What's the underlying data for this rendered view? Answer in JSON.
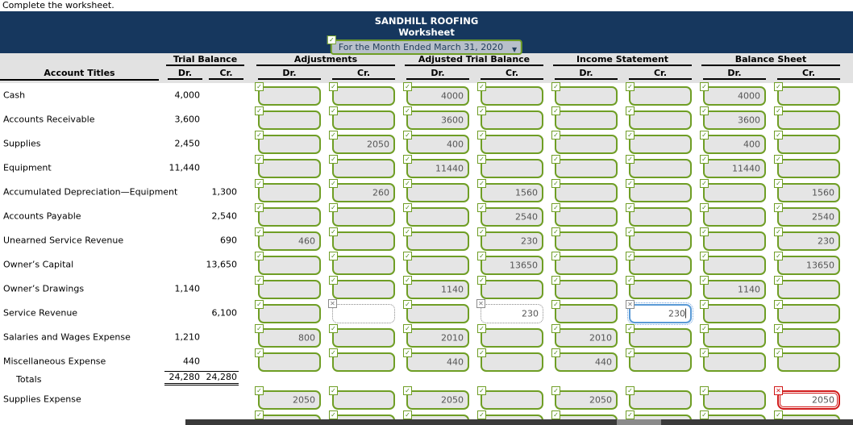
{
  "page": {
    "instruction": "Complete the worksheet."
  },
  "header": {
    "title": "SANDHILL ROOFING",
    "subtitle": "Worksheet",
    "period_dropdown": {
      "value": "For the Month Ended March 31, 2020"
    }
  },
  "columns": {
    "account_titles": "Account Titles",
    "dr": "Dr.",
    "cr": "Cr.",
    "groups": [
      {
        "label": "Trial Balance"
      },
      {
        "label": "Adjustments"
      },
      {
        "label": "Adjusted Trial Balance"
      },
      {
        "label": "Income Statement"
      },
      {
        "label": "Balance Sheet"
      }
    ]
  },
  "icons": {
    "check": "✓",
    "cross": "✕",
    "dropdown": "▼"
  },
  "colors": {
    "navy": "#16375e",
    "green": "#6f9e25",
    "green_dark": "#4e8a1a",
    "input_grey": "#e5e5e5",
    "band_grey": "#e2e2e2",
    "focus_blue": "#5a9ad6",
    "error_red": "#d11a1a",
    "value_text": "#555555"
  },
  "rows": [
    {
      "label": "Cash",
      "tb_dr": "4,000",
      "tb_cr": "",
      "cells": [
        "",
        "",
        "4000",
        "",
        "",
        "",
        "4000",
        ""
      ]
    },
    {
      "label": "Accounts Receivable",
      "tb_dr": "3,600",
      "tb_cr": "",
      "cells": [
        "",
        "",
        "3600",
        "",
        "",
        "",
        "3600",
        ""
      ]
    },
    {
      "label": "Supplies",
      "tb_dr": "2,450",
      "tb_cr": "",
      "cells": [
        "",
        "2050",
        "400",
        "",
        "",
        "",
        "400",
        ""
      ]
    },
    {
      "label": "Equipment",
      "tb_dr": "11,440",
      "tb_cr": "",
      "cells": [
        "",
        "",
        "11440",
        "",
        "",
        "",
        "11440",
        ""
      ]
    },
    {
      "label": "Accumulated Depreciation—Equipment",
      "tb_dr": "",
      "tb_cr": "1,300",
      "cells": [
        "",
        "260",
        "",
        "1560",
        "",
        "",
        "",
        "1560"
      ]
    },
    {
      "label": "Accounts Payable",
      "tb_dr": "",
      "tb_cr": "2,540",
      "cells": [
        "",
        "",
        "",
        "2540",
        "",
        "",
        "",
        "2540"
      ]
    },
    {
      "label": "Unearned Service Revenue",
      "tb_dr": "",
      "tb_cr": "690",
      "cells": [
        "460",
        "",
        "",
        "230",
        "",
        "",
        "",
        "230"
      ]
    },
    {
      "label": "Owner’s Capital",
      "tb_dr": "",
      "tb_cr": "13,650",
      "cells": [
        "",
        "",
        "",
        "13650",
        "",
        "",
        "",
        "13650"
      ]
    },
    {
      "label": "Owner’s Drawings",
      "tb_dr": "1,140",
      "tb_cr": "",
      "cells": [
        "",
        "",
        "1140",
        "",
        "",
        "",
        "1140",
        ""
      ]
    },
    {
      "label": "Service Revenue",
      "tb_dr": "",
      "tb_cr": "6,100",
      "cells": [
        "",
        "",
        "",
        "230",
        "",
        "230",
        "",
        ""
      ],
      "states": {
        "1": "invalid",
        "3": "invalid",
        "5": "active"
      }
    },
    {
      "label": "Salaries and Wages Expense",
      "tb_dr": "1,210",
      "tb_cr": "",
      "cells": [
        "800",
        "",
        "2010",
        "",
        "2010",
        "",
        "",
        ""
      ]
    },
    {
      "label": "Miscellaneous Expense",
      "tb_dr": "440",
      "tb_cr": "",
      "cells": [
        "",
        "",
        "440",
        "",
        "440",
        "",
        "",
        ""
      ]
    },
    {
      "label": "Totals",
      "kind": "totals",
      "tb_dr": "24,280",
      "tb_cr": "24,280"
    },
    {
      "label": "Supplies Expense",
      "tb_dr": "",
      "tb_cr": "",
      "cells": [
        "2050",
        "",
        "2050",
        "",
        "2050",
        "",
        "",
        "2050"
      ],
      "states": {
        "7": "error"
      }
    },
    {
      "label": "",
      "partial": true,
      "cells": [
        "",
        "",
        "",
        "",
        "",
        "",
        "",
        ""
      ]
    }
  ]
}
